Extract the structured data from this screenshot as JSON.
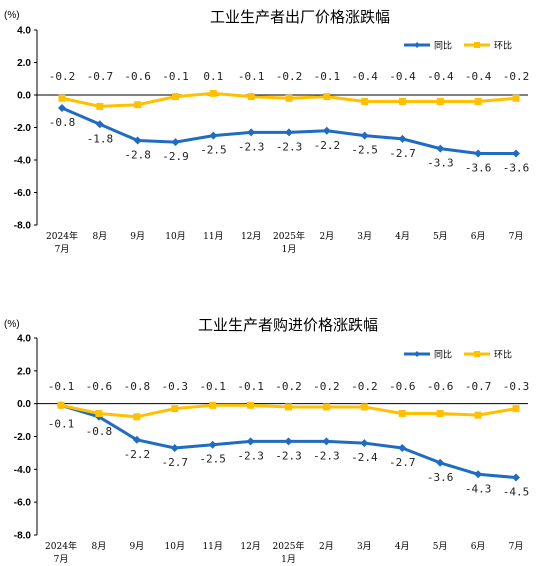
{
  "colors": {
    "yoy": "#1f6cc4",
    "mom": "#ffc000",
    "axis": "#000000"
  },
  "chart_data": [
    {
      "type": "line",
      "title": "工业生产者出厂价格涨跌幅",
      "unit": "(%)",
      "ylim": [
        -8.0,
        4.0
      ],
      "yticks": [
        "4.0",
        "2.0",
        "0.0",
        "-2.0",
        "-4.0",
        "-6.0",
        "-8.0"
      ],
      "categories": [
        "2024年|7月",
        "8月",
        "9月",
        "10月",
        "11月",
        "12月",
        "2025年|1月",
        "2月",
        "3月",
        "4月",
        "5月",
        "6月",
        "7月"
      ],
      "legend": "top-right",
      "series": [
        {
          "name": "同比",
          "values": [
            -0.8,
            -1.8,
            -2.8,
            -2.9,
            -2.5,
            -2.3,
            -2.3,
            -2.2,
            -2.5,
            -2.7,
            -3.3,
            -3.6,
            -3.6
          ]
        },
        {
          "name": "环比",
          "values": [
            -0.2,
            -0.7,
            -0.6,
            -0.1,
            0.1,
            -0.1,
            -0.2,
            -0.1,
            -0.4,
            -0.4,
            -0.4,
            -0.4,
            -0.2
          ]
        }
      ]
    },
    {
      "type": "line",
      "title": "工业生产者购进价格涨跌幅",
      "unit": "(%)",
      "ylim": [
        -8.0,
        4.0
      ],
      "yticks": [
        "4.0",
        "2.0",
        "0.0",
        "-2.0",
        "-4.0",
        "-6.0",
        "-8.0"
      ],
      "categories": [
        "2024年|7月",
        "8月",
        "9月",
        "10月",
        "11月",
        "12月",
        "2025年|1月",
        "2月",
        "3月",
        "4月",
        "5月",
        "6月",
        "7月"
      ],
      "legend": "top-right",
      "series": [
        {
          "name": "同比",
          "values": [
            -0.1,
            -0.8,
            -2.2,
            -2.7,
            -2.5,
            -2.3,
            -2.3,
            -2.3,
            -2.4,
            -2.7,
            -3.6,
            -4.3,
            -4.5
          ]
        },
        {
          "name": "环比",
          "values": [
            -0.1,
            -0.6,
            -0.8,
            -0.3,
            -0.1,
            -0.1,
            -0.2,
            -0.2,
            -0.2,
            -0.6,
            -0.6,
            -0.7,
            -0.3
          ]
        }
      ]
    }
  ]
}
